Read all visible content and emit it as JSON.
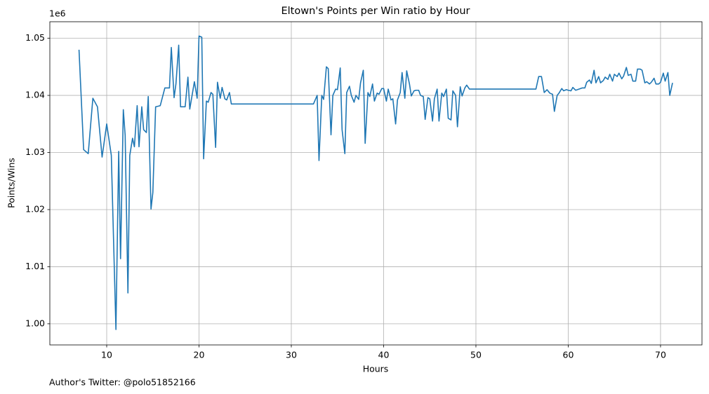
{
  "chart_data": {
    "type": "line",
    "title": "Eltown's Points per Win ratio by Hour",
    "x_label": "Hours",
    "y_label": "Points/Wins",
    "y_offset_label": "1e6",
    "footnote": "Author's Twitter: @polo51852166",
    "color": "#1f77b4",
    "grid": true,
    "xlim": [
      3.84,
      74.49
    ],
    "xticks": [
      10,
      20,
      30,
      40,
      50,
      60,
      70
    ],
    "ylim": [
      0.9963,
      1.0529
    ],
    "yticks": [
      {
        "value": 1.0,
        "label": "1.00"
      },
      {
        "value": 1.01,
        "label": "1.01"
      },
      {
        "value": 1.02,
        "label": "1.02"
      },
      {
        "value": 1.03,
        "label": "1.03"
      },
      {
        "value": 1.04,
        "label": "1.04"
      },
      {
        "value": 1.05,
        "label": "1.05"
      }
    ],
    "x": [
      7.0,
      7.5,
      8.0,
      8.5,
      9.0,
      9.5,
      10.0,
      10.5,
      11.0,
      11.3,
      11.5,
      11.8,
      12.0,
      12.3,
      12.5,
      12.8,
      13.0,
      13.3,
      13.5,
      13.8,
      14.0,
      14.3,
      14.5,
      14.8,
      15.0,
      15.3,
      15.8,
      16.3,
      16.8,
      17.0,
      17.3,
      17.5,
      17.8,
      18.0,
      18.5,
      18.8,
      19.0,
      19.5,
      19.8,
      20.0,
      20.3,
      20.5,
      20.8,
      21.0,
      21.3,
      21.5,
      21.8,
      22.0,
      22.3,
      22.5,
      22.8,
      23.0,
      23.3,
      23.5,
      32.4,
      32.8,
      33.0,
      33.3,
      33.5,
      33.8,
      34.0,
      34.3,
      34.5,
      34.8,
      35.0,
      35.3,
      35.5,
      35.8,
      36.0,
      36.3,
      36.5,
      36.8,
      37.0,
      37.3,
      37.5,
      37.8,
      38.0,
      38.3,
      38.5,
      38.8,
      39.0,
      39.3,
      39.5,
      39.8,
      40.0,
      40.3,
      40.5,
      40.8,
      41.0,
      41.3,
      41.5,
      41.8,
      42.0,
      42.3,
      42.5,
      42.8,
      43.0,
      43.3,
      43.5,
      43.8,
      44.0,
      44.3,
      44.5,
      44.8,
      45.0,
      45.3,
      45.5,
      45.8,
      46.0,
      46.3,
      46.5,
      46.8,
      47.0,
      47.3,
      47.5,
      47.8,
      48.0,
      48.3,
      48.5,
      48.8,
      49.0,
      49.3,
      56.5,
      56.8,
      57.1,
      57.4,
      57.7,
      58.0,
      58.3,
      58.5,
      58.8,
      59.0,
      59.3,
      59.5,
      59.8,
      60.0,
      60.3,
      60.5,
      60.8,
      61.0,
      61.5,
      61.8,
      62.0,
      62.3,
      62.5,
      62.8,
      63.0,
      63.3,
      63.5,
      63.8,
      64.0,
      64.3,
      64.5,
      64.8,
      65.0,
      65.3,
      65.5,
      65.8,
      66.0,
      66.3,
      66.5,
      66.8,
      67.0,
      67.3,
      67.5,
      67.8,
      68.0,
      68.3,
      68.5,
      68.8,
      69.0,
      69.3,
      69.5,
      69.8,
      70.0,
      70.3,
      70.5,
      70.8,
      71.0,
      71.3
    ],
    "values": [
      1.048,
      1.0305,
      1.0298,
      1.0395,
      1.038,
      1.0292,
      1.035,
      1.0295,
      0.999,
      1.0302,
      1.0114,
      1.0375,
      1.033,
      1.0054,
      1.0295,
      1.0325,
      1.031,
      1.0382,
      1.031,
      1.038,
      1.034,
      1.0335,
      1.0398,
      1.0201,
      1.023,
      1.038,
      1.0382,
      1.0413,
      1.0413,
      1.0484,
      1.0396,
      1.042,
      1.0488,
      1.038,
      1.038,
      1.0432,
      1.0376,
      1.0424,
      1.0395,
      1.0504,
      1.0502,
      1.0289,
      1.039,
      1.0388,
      1.0405,
      1.0402,
      1.0309,
      1.0423,
      1.0395,
      1.0414,
      1.0394,
      1.0392,
      1.0405,
      1.0385,
      1.0385,
      1.04,
      1.0286,
      1.04,
      1.0393,
      1.045,
      1.0447,
      1.0331,
      1.04,
      1.0411,
      1.041,
      1.0448,
      1.034,
      1.0298,
      1.0405,
      1.0416,
      1.04,
      1.0388,
      1.04,
      1.0393,
      1.0422,
      1.0444,
      1.0316,
      1.0405,
      1.0398,
      1.042,
      1.039,
      1.0404,
      1.0402,
      1.0412,
      1.0412,
      1.039,
      1.0411,
      1.0392,
      1.0394,
      1.035,
      1.0392,
      1.0405,
      1.044,
      1.0395,
      1.0443,
      1.042,
      1.0399,
      1.0408,
      1.0409,
      1.0409,
      1.04,
      1.0398,
      1.0358,
      1.0396,
      1.0394,
      1.0355,
      1.0394,
      1.0411,
      1.0355,
      1.0404,
      1.0398,
      1.0411,
      1.036,
      1.0357,
      1.0408,
      1.04,
      1.0345,
      1.0415,
      1.0399,
      1.0413,
      1.0418,
      1.0411,
      1.0411,
      1.0433,
      1.0433,
      1.0405,
      1.041,
      1.0404,
      1.0402,
      1.0372,
      1.04,
      1.0404,
      1.0412,
      1.0408,
      1.041,
      1.0409,
      1.0408,
      1.0414,
      1.0409,
      1.041,
      1.0413,
      1.0413,
      1.0423,
      1.0427,
      1.0421,
      1.0444,
      1.0422,
      1.0433,
      1.0422,
      1.0426,
      1.0432,
      1.0428,
      1.0437,
      1.0425,
      1.0437,
      1.0433,
      1.0439,
      1.0429,
      1.0434,
      1.0449,
      1.0435,
      1.0437,
      1.0425,
      1.0425,
      1.0446,
      1.0446,
      1.0444,
      1.0422,
      1.0424,
      1.042,
      1.0423,
      1.043,
      1.042,
      1.042,
      1.0423,
      1.0439,
      1.0425,
      1.044,
      1.04,
      1.0422
    ]
  }
}
